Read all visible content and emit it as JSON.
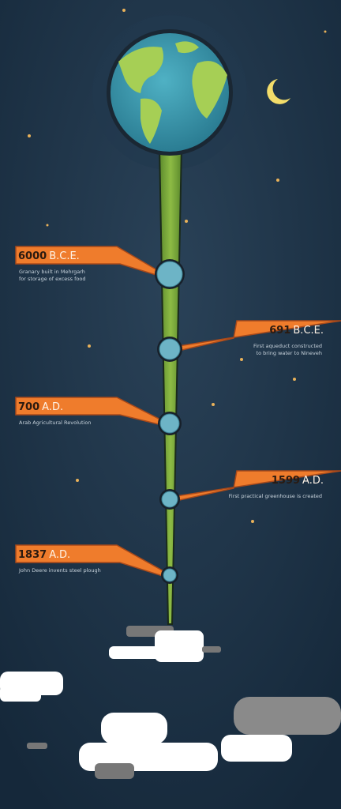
{
  "events": [
    {
      "year": "6000",
      "era": "B.C.E.",
      "description": [
        "Granary built in Mehrgarh",
        "for storage of excess food"
      ]
    },
    {
      "year": "691",
      "era": "B.C.E.",
      "description": [
        "First aqueduct constructed",
        "to bring water to Nineveh"
      ]
    },
    {
      "year": "700",
      "era": "A.D.",
      "description": [
        "Arab Agricultural Revolution"
      ]
    },
    {
      "year": "1599",
      "era": "A.D.",
      "description": [
        "First practical greenhouse is created"
      ]
    },
    {
      "year": "1837",
      "era": "A.D.",
      "description": [
        "John Deere invents steel plough"
      ]
    }
  ]
}
